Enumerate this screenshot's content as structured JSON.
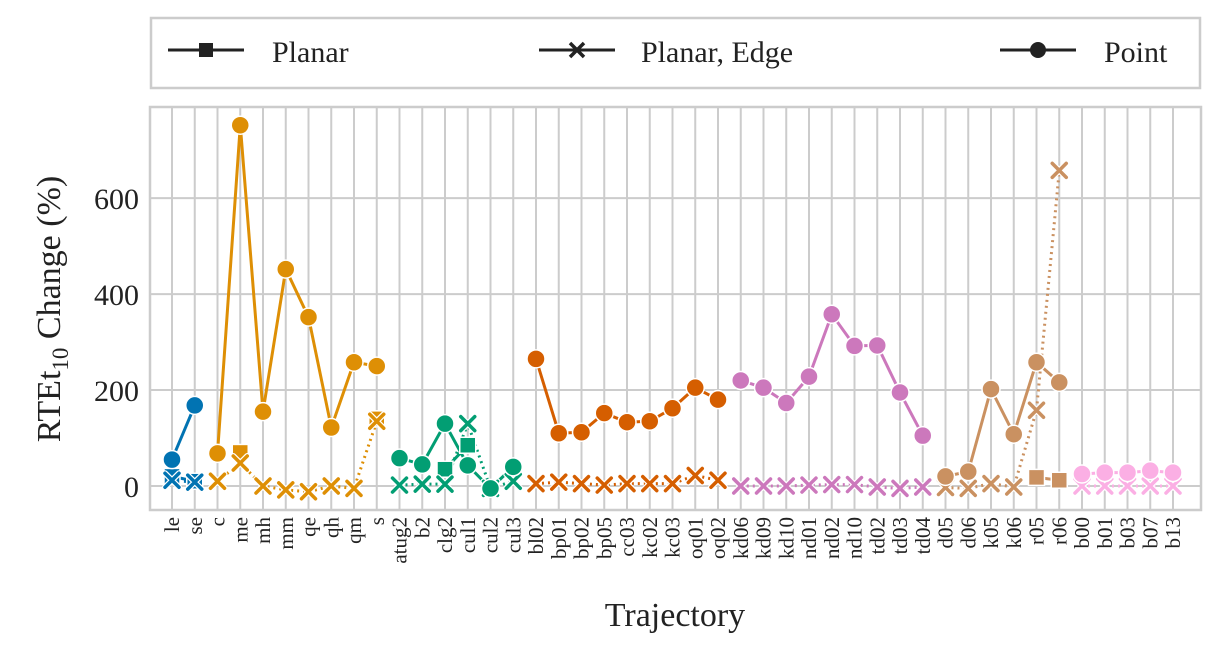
{
  "chart_data": {
    "type": "line",
    "title": "",
    "xlabel": "Trajectory",
    "ylabel_main": "RTEt",
    "ylabel_sub": "10",
    "ylabel_rest": " Change (%)",
    "ylim": [
      -50,
      790
    ],
    "yticks": [
      0,
      200,
      400,
      600
    ],
    "grid": true,
    "legend": {
      "placement": "top (outside, horizontal)",
      "entries": [
        {
          "label": "Planar",
          "marker": "square"
        },
        {
          "label": "Planar, Edge",
          "marker": "x"
        },
        {
          "label": "Point",
          "marker": "circle"
        }
      ]
    },
    "categories": [
      "le",
      "se",
      "c",
      "me",
      "mh",
      "mm",
      "qe",
      "qh",
      "qm",
      "s",
      "atug2",
      "b2",
      "clg2",
      "cul1",
      "cul2",
      "cul3",
      "bl02",
      "bp01",
      "bp02",
      "bp05",
      "cc03",
      "kc02",
      "kc03",
      "oq01",
      "oq02",
      "kd06",
      "kd09",
      "kd10",
      "nd01",
      "nd02",
      "nd10",
      "td02",
      "td03",
      "td04",
      "d05",
      "d06",
      "k05",
      "k06",
      "r05",
      "r06",
      "b00",
      "b01",
      "b03",
      "b07",
      "b13"
    ],
    "groups": [
      {
        "color": "#0173b2",
        "indices": [
          0,
          1
        ],
        "planar": [
          20,
          10
        ],
        "edge": [
          12,
          8
        ],
        "point": [
          55,
          168
        ]
      },
      {
        "color": "#de8f05",
        "indices": [
          2,
          3,
          4,
          5,
          6,
          7,
          8,
          9
        ],
        "planar": [
          null,
          70,
          null,
          null,
          null,
          null,
          null,
          140
        ],
        "edge": [
          10,
          48,
          0,
          -8,
          -12,
          0,
          -5,
          135
        ],
        "point": [
          68,
          752,
          155,
          452,
          352,
          122,
          258,
          250
        ]
      },
      {
        "color": "#029e73",
        "indices": [
          10,
          11,
          12,
          13,
          14,
          15
        ],
        "planar": [
          null,
          null,
          35,
          85,
          null,
          null
        ],
        "edge": [
          2,
          4,
          4,
          130,
          -5,
          10
        ],
        "point": [
          58,
          45,
          130,
          43,
          -5,
          40
        ]
      },
      {
        "color": "#d55e00",
        "indices": [
          16,
          17,
          18,
          19,
          20,
          21,
          22,
          23,
          24
        ],
        "planar": [
          null,
          null,
          null,
          null,
          null,
          null,
          null,
          null,
          null
        ],
        "edge": [
          5,
          8,
          5,
          2,
          5,
          5,
          5,
          22,
          12
        ],
        "point": [
          265,
          110,
          112,
          152,
          133,
          135,
          162,
          205,
          180
        ]
      },
      {
        "color": "#cc78bc",
        "indices": [
          25,
          26,
          27,
          28,
          29,
          30,
          31,
          32,
          33
        ],
        "planar": [
          null,
          null,
          null,
          null,
          null,
          null,
          null,
          null,
          null
        ],
        "edge": [
          0,
          0,
          0,
          2,
          3,
          3,
          -2,
          -5,
          -2
        ],
        "point": [
          220,
          205,
          173,
          228,
          358,
          292,
          293,
          195,
          105
        ]
      },
      {
        "color": "#ca9161",
        "indices": [
          34,
          35,
          36,
          37,
          38,
          39
        ],
        "planar": [
          null,
          null,
          null,
          null,
          18,
          12
        ],
        "edge": [
          -3,
          -5,
          5,
          -2,
          158,
          658
        ],
        "point": [
          20,
          30,
          202,
          108,
          258,
          216
        ]
      },
      {
        "color": "#fbafe4",
        "indices": [
          40,
          41,
          42,
          43,
          44
        ],
        "planar": [
          null,
          null,
          null,
          null,
          null
        ],
        "edge": [
          0,
          0,
          0,
          0,
          0
        ],
        "point": [
          25,
          28,
          28,
          32,
          28
        ]
      }
    ]
  }
}
